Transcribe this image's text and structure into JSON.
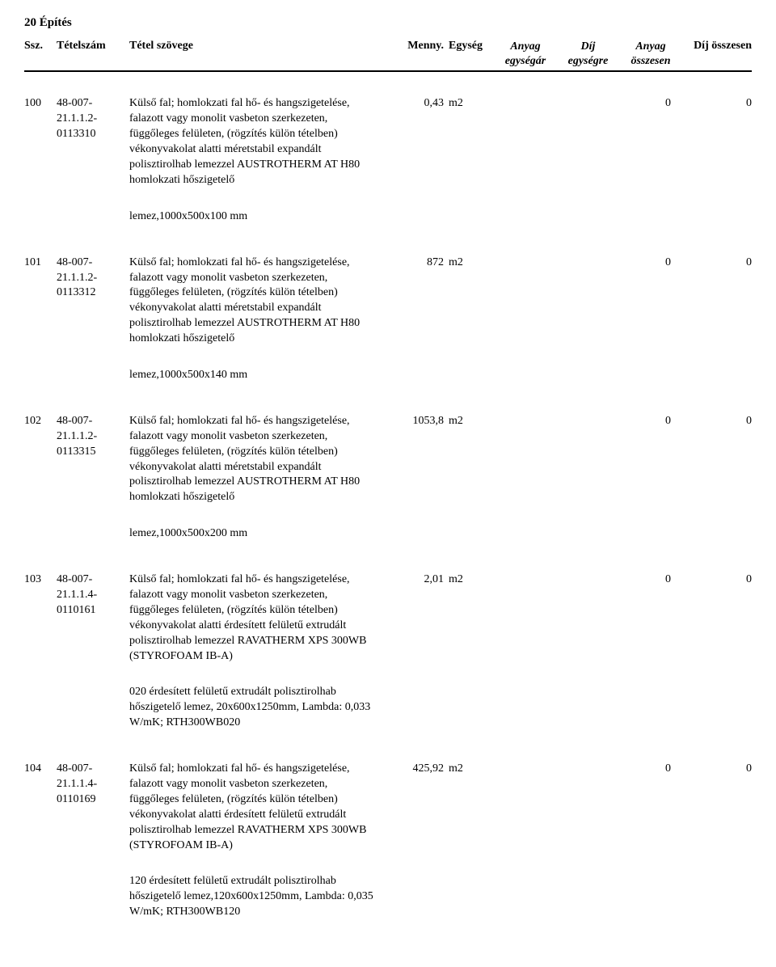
{
  "page_title": "20 Építés",
  "headers": {
    "ssz": "Ssz.",
    "tetelszam": "Tételszám",
    "szoveg": "Tétel szövege",
    "menny": "Menny.",
    "egyseg": "Egység",
    "anyag_egysegar_l1": "Anyag",
    "anyag_egysegar_l2": "egységár",
    "dij_egysegre_l1": "Díj",
    "dij_egysegre_l2": "egységre",
    "anyag_osszesen_l1": "Anyag",
    "anyag_osszesen_l2": "összesen",
    "dij_osszesen": "Díj összesen"
  },
  "rows": [
    {
      "ssz": "100",
      "tetelszam": "48-007-21.1.1.2-0113310",
      "szoveg": "Külső fal; homlokzati fal hő- és hangszigetelése, falazott vagy monolit vasbeton szerkezeten, függőleges felületen, (rögzítés külön tételben) vékonyvakolat alatti méretstabil expandált polisztirolhab lemezzel AUSTROTHERM AT H80 homlokzati hőszigetelő",
      "menny": "0,43",
      "egyseg": "m2",
      "anyag_osszesen": "0",
      "dij_osszesen": "0",
      "note": "lemez,1000x500x100 mm"
    },
    {
      "ssz": "101",
      "tetelszam": "48-007-21.1.1.2-0113312",
      "szoveg": "Külső fal; homlokzati fal hő- és hangszigetelése, falazott vagy monolit vasbeton szerkezeten, függőleges felületen, (rögzítés külön tételben) vékonyvakolat alatti méretstabil expandált polisztirolhab lemezzel AUSTROTHERM AT H80 homlokzati hőszigetelő",
      "menny": "872",
      "egyseg": "m2",
      "anyag_osszesen": "0",
      "dij_osszesen": "0",
      "note": "lemez,1000x500x140 mm"
    },
    {
      "ssz": "102",
      "tetelszam": "48-007-21.1.1.2-0113315",
      "szoveg": "Külső fal; homlokzati fal hő- és hangszigetelése, falazott vagy monolit vasbeton szerkezeten, függőleges felületen, (rögzítés külön tételben) vékonyvakolat alatti méretstabil expandált polisztirolhab lemezzel AUSTROTHERM AT H80 homlokzati hőszigetelő",
      "menny": "1053,8",
      "egyseg": "m2",
      "anyag_osszesen": "0",
      "dij_osszesen": "0",
      "note": "lemez,1000x500x200 mm"
    },
    {
      "ssz": "103",
      "tetelszam": "48-007-21.1.1.4-0110161",
      "szoveg": "Külső fal; homlokzati fal hő- és hangszigetelése, falazott vagy monolit vasbeton szerkezeten, függőleges felületen, (rögzítés külön tételben) vékonyvakolat alatti érdesített felületű extrudált polisztirolhab lemezzel RAVATHERM XPS 300WB (STYROFOAM IB-A)",
      "menny": "2,01",
      "egyseg": "m2",
      "anyag_osszesen": "0",
      "dij_osszesen": "0",
      "note": "020 érdesített felületű extrudált polisztirolhab hőszigetelő lemez, 20x600x1250mm, Lambda: 0,033 W/mK; RTH300WB020"
    },
    {
      "ssz": "104",
      "tetelszam": "48-007-21.1.1.4-0110169",
      "szoveg": "Külső fal; homlokzati fal hő- és hangszigetelése, falazott vagy monolit vasbeton szerkezeten, függőleges felületen, (rögzítés külön tételben) vékonyvakolat alatti érdesített felületű extrudált polisztirolhab lemezzel RAVATHERM XPS 300WB (STYROFOAM IB-A)",
      "menny": "425,92",
      "egyseg": "m2",
      "anyag_osszesen": "0",
      "dij_osszesen": "0",
      "note": "120 érdesített felületű extrudált polisztirolhab hőszigetelő lemez,120x600x1250mm, Lambda: 0,035 W/mK; RTH300WB120"
    }
  ]
}
